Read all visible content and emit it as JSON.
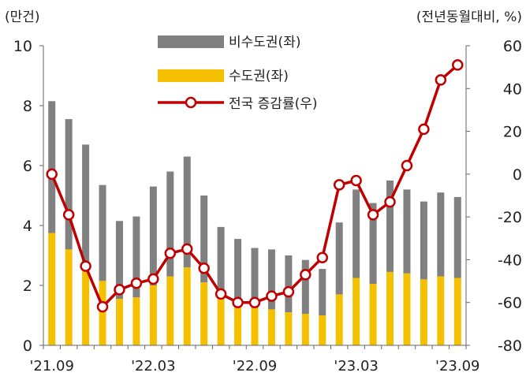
{
  "chart_data": {
    "type": "bar+line",
    "left_unit": "(만건)",
    "right_unit": "(전년동월대비, %)",
    "categories": [
      "21.09",
      "21.10",
      "21.11",
      "21.12",
      "22.01",
      "22.02",
      "22.03",
      "22.04",
      "22.05",
      "22.06",
      "22.07",
      "22.08",
      "22.09",
      "22.10",
      "22.11",
      "22.12",
      "23.01",
      "23.02",
      "23.03",
      "23.04",
      "23.05",
      "23.06",
      "23.07",
      "23.08",
      "23.09"
    ],
    "x_tick_labels": [
      "'21.09",
      "'22.03",
      "'22.09",
      "'23.03",
      "'23.09"
    ],
    "left_axis": {
      "min": 0,
      "max": 10,
      "ticks": [
        "0",
        "2",
        "4",
        "6",
        "8",
        "10"
      ]
    },
    "right_axis": {
      "min": -80,
      "max": 60,
      "ticks": [
        "-80",
        "-60",
        "-40",
        "-20",
        "0",
        "20",
        "40",
        "60"
      ]
    },
    "series": [
      {
        "name": "비수도권(좌)",
        "type": "stacked-bar",
        "axis": "left",
        "color": "#808080",
        "values": [
          4.4,
          4.35,
          4.2,
          3.2,
          2.6,
          2.7,
          3.3,
          3.5,
          3.7,
          2.9,
          2.4,
          2.1,
          2.0,
          2.0,
          1.9,
          1.8,
          1.55,
          2.4,
          2.95,
          2.7,
          3.05,
          2.8,
          2.6,
          2.8,
          2.7
        ]
      },
      {
        "name": "수도권(좌)",
        "type": "stacked-bar",
        "axis": "left",
        "color": "#f5c000",
        "values": [
          3.75,
          3.2,
          2.5,
          2.15,
          1.55,
          1.6,
          2.0,
          2.3,
          2.6,
          2.1,
          1.55,
          1.45,
          1.25,
          1.2,
          1.1,
          1.05,
          1.0,
          1.7,
          2.25,
          2.05,
          2.45,
          2.4,
          2.2,
          2.3,
          2.25
        ]
      },
      {
        "name": "전국 증감률(우)",
        "type": "line",
        "axis": "right",
        "color": "#c00000",
        "values": [
          0,
          -19,
          -43,
          -62,
          -54,
          -51,
          -49,
          -37,
          -35,
          -44,
          -56,
          -60,
          -60,
          -57,
          -55,
          -47,
          -39,
          -5,
          -3,
          -19,
          -13,
          4,
          21,
          44,
          51
        ]
      }
    ],
    "legend": {
      "placement": "top-center",
      "entries": [
        "비수도권(좌)",
        "수도권(좌)",
        "전국 증감률(우)"
      ]
    }
  }
}
